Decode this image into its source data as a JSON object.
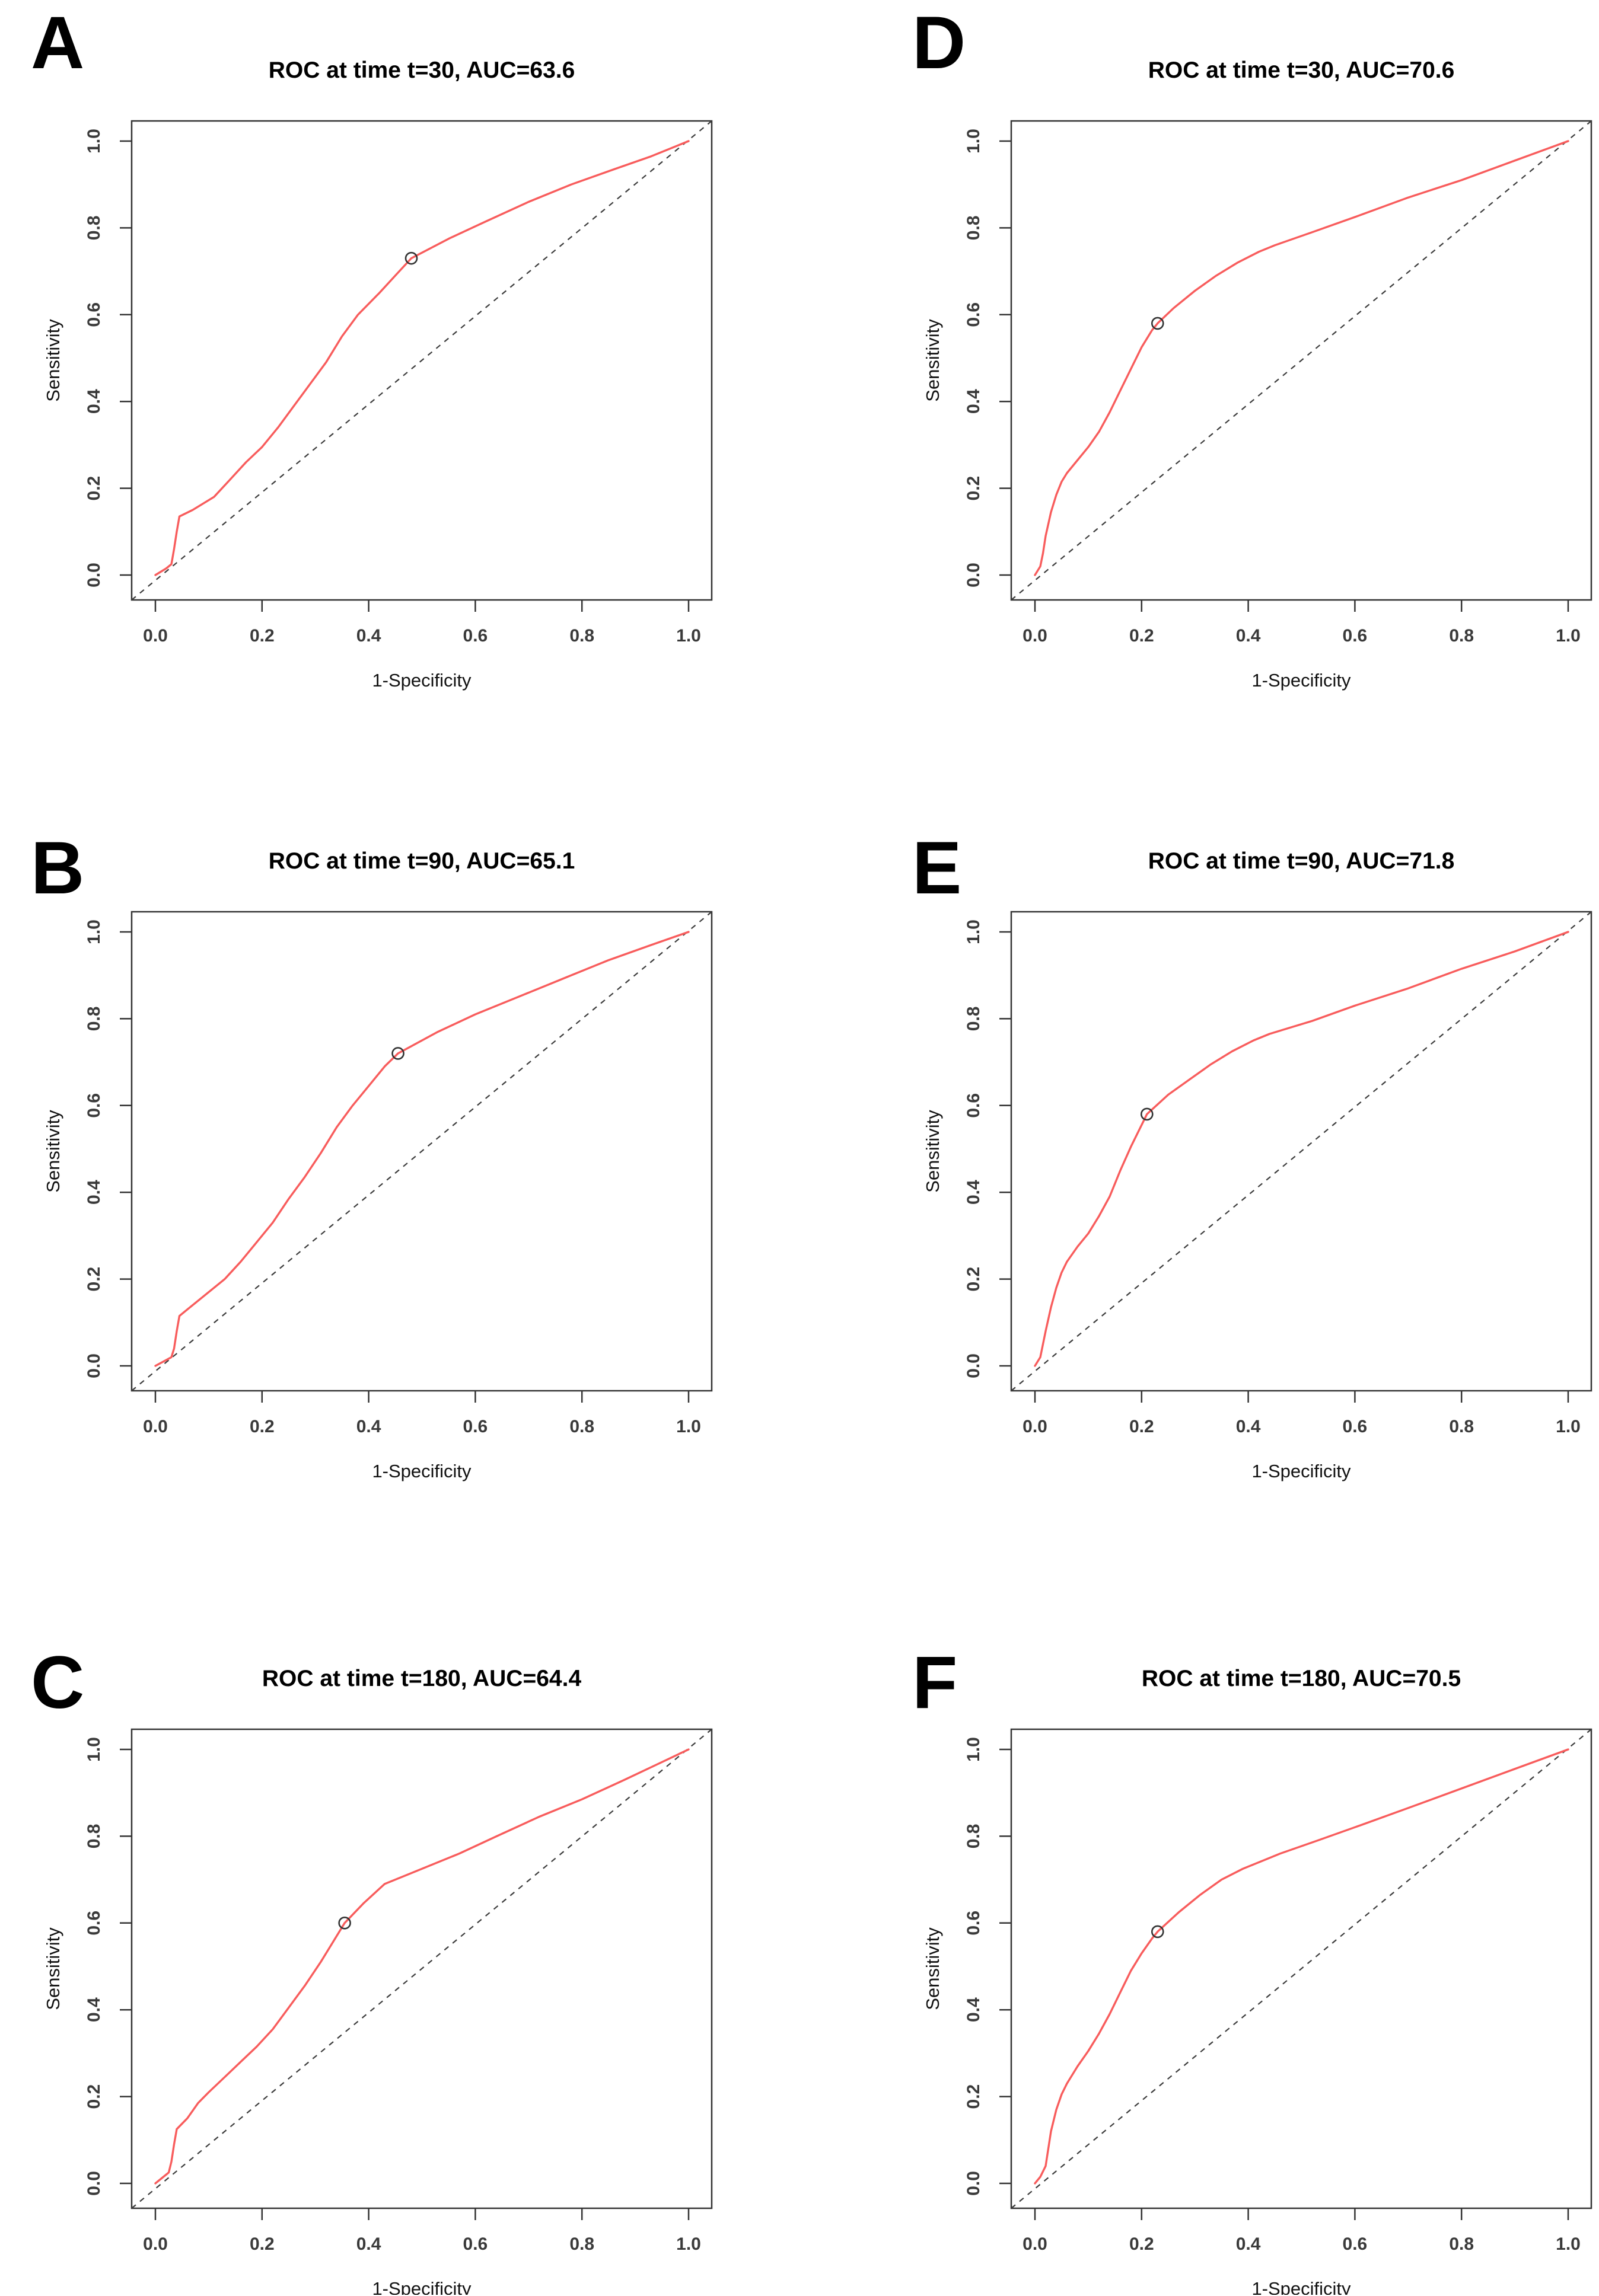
{
  "figure": {
    "background": "#ffffff",
    "curve_color": "#f85c5c",
    "diagonal_color": "#3c3c3c",
    "box_color": "#333333",
    "tick_text_color": "#3a3a3a",
    "title_color": "#000000"
  },
  "chart_data": [
    {
      "type": "line",
      "panel_label": "A",
      "title": "ROC at time t=30, AUC=63.6",
      "time": 30,
      "auc": 63.6,
      "xlabel": "1-Specificity",
      "ylabel": "Sensitivity",
      "xlim": [
        0,
        1
      ],
      "ylim": [
        0,
        1
      ],
      "x_ticks": [
        0,
        0.2,
        0.4,
        0.6,
        0.8,
        1.0
      ],
      "y_ticks": [
        0,
        0.2,
        0.4,
        0.6,
        0.8,
        1.0
      ],
      "x_tick_labels": [
        "0.0",
        "0.2",
        "0.4",
        "0.6",
        "0.8",
        "1.0"
      ],
      "y_tick_labels": [
        "0.0",
        "0.2",
        "0.4",
        "0.6",
        "0.8",
        "1.0"
      ],
      "grid": false,
      "legend": "none",
      "series": [
        {
          "name": "ROC curve",
          "style": "solid",
          "points": [
            [
              0,
              0
            ],
            [
              0.02,
              0.015
            ],
            [
              0.03,
              0.025
            ],
            [
              0.035,
              0.06
            ],
            [
              0.04,
              0.1
            ],
            [
              0.045,
              0.135
            ],
            [
              0.07,
              0.15
            ],
            [
              0.09,
              0.165
            ],
            [
              0.11,
              0.18
            ],
            [
              0.14,
              0.22
            ],
            [
              0.17,
              0.26
            ],
            [
              0.2,
              0.295
            ],
            [
              0.23,
              0.34
            ],
            [
              0.26,
              0.39
            ],
            [
              0.29,
              0.44
            ],
            [
              0.32,
              0.49
            ],
            [
              0.35,
              0.55
            ],
            [
              0.38,
              0.6
            ],
            [
              0.42,
              0.65
            ],
            [
              0.45,
              0.69
            ],
            [
              0.48,
              0.73
            ],
            [
              0.55,
              0.775
            ],
            [
              0.62,
              0.815
            ],
            [
              0.7,
              0.86
            ],
            [
              0.78,
              0.9
            ],
            [
              0.86,
              0.935
            ],
            [
              0.93,
              0.965
            ],
            [
              1.0,
              1.0
            ]
          ]
        },
        {
          "name": "chance diagonal",
          "style": "dashed",
          "points": [
            [
              0,
              0
            ],
            [
              1,
              1
            ]
          ]
        }
      ],
      "marker": {
        "x": 0.48,
        "y": 0.73,
        "shape": "open-circle"
      }
    },
    {
      "type": "line",
      "panel_label": "B",
      "title": "ROC at time t=90, AUC=65.1",
      "time": 90,
      "auc": 65.1,
      "xlabel": "1-Specificity",
      "ylabel": "Sensitivity",
      "xlim": [
        0,
        1
      ],
      "ylim": [
        0,
        1
      ],
      "x_ticks": [
        0,
        0.2,
        0.4,
        0.6,
        0.8,
        1.0
      ],
      "y_ticks": [
        0,
        0.2,
        0.4,
        0.6,
        0.8,
        1.0
      ],
      "x_tick_labels": [
        "0.0",
        "0.2",
        "0.4",
        "0.6",
        "0.8",
        "1.0"
      ],
      "y_tick_labels": [
        "0.0",
        "0.2",
        "0.4",
        "0.6",
        "0.8",
        "1.0"
      ],
      "grid": false,
      "legend": "none",
      "series": [
        {
          "name": "ROC curve",
          "style": "solid",
          "points": [
            [
              0,
              0
            ],
            [
              0.015,
              0.01
            ],
            [
              0.03,
              0.02
            ],
            [
              0.035,
              0.04
            ],
            [
              0.04,
              0.08
            ],
            [
              0.045,
              0.115
            ],
            [
              0.06,
              0.13
            ],
            [
              0.08,
              0.15
            ],
            [
              0.1,
              0.17
            ],
            [
              0.13,
              0.2
            ],
            [
              0.16,
              0.24
            ],
            [
              0.19,
              0.285
            ],
            [
              0.22,
              0.33
            ],
            [
              0.25,
              0.385
            ],
            [
              0.28,
              0.435
            ],
            [
              0.31,
              0.49
            ],
            [
              0.34,
              0.55
            ],
            [
              0.37,
              0.6
            ],
            [
              0.4,
              0.645
            ],
            [
              0.43,
              0.69
            ],
            [
              0.455,
              0.72
            ],
            [
              0.53,
              0.77
            ],
            [
              0.6,
              0.81
            ],
            [
              0.68,
              0.85
            ],
            [
              0.76,
              0.89
            ],
            [
              0.85,
              0.935
            ],
            [
              0.93,
              0.97
            ],
            [
              1.0,
              1.0
            ]
          ]
        },
        {
          "name": "chance diagonal",
          "style": "dashed",
          "points": [
            [
              0,
              0
            ],
            [
              1,
              1
            ]
          ]
        }
      ],
      "marker": {
        "x": 0.455,
        "y": 0.72,
        "shape": "open-circle"
      }
    },
    {
      "type": "line",
      "panel_label": "C",
      "title": "ROC at time t=180, AUC=64.4",
      "time": 180,
      "auc": 64.4,
      "xlabel": "1-Specificity",
      "ylabel": "Sensitivity",
      "xlim": [
        0,
        1
      ],
      "ylim": [
        0,
        1
      ],
      "x_ticks": [
        0,
        0.2,
        0.4,
        0.6,
        0.8,
        1.0
      ],
      "y_ticks": [
        0,
        0.2,
        0.4,
        0.6,
        0.8,
        1.0
      ],
      "x_tick_labels": [
        "0.0",
        "0.2",
        "0.4",
        "0.6",
        "0.8",
        "1.0"
      ],
      "y_tick_labels": [
        "0.0",
        "0.2",
        "0.4",
        "0.6",
        "0.8",
        "1.0"
      ],
      "grid": false,
      "legend": "none",
      "series": [
        {
          "name": "ROC curve",
          "style": "solid",
          "points": [
            [
              0,
              0
            ],
            [
              0.015,
              0.015
            ],
            [
              0.025,
              0.025
            ],
            [
              0.03,
              0.05
            ],
            [
              0.035,
              0.09
            ],
            [
              0.04,
              0.125
            ],
            [
              0.06,
              0.15
            ],
            [
              0.08,
              0.185
            ],
            [
              0.1,
              0.21
            ],
            [
              0.13,
              0.245
            ],
            [
              0.16,
              0.28
            ],
            [
              0.19,
              0.315
            ],
            [
              0.22,
              0.355
            ],
            [
              0.25,
              0.405
            ],
            [
              0.28,
              0.455
            ],
            [
              0.31,
              0.51
            ],
            [
              0.33,
              0.55
            ],
            [
              0.355,
              0.6
            ],
            [
              0.39,
              0.645
            ],
            [
              0.43,
              0.69
            ],
            [
              0.47,
              0.71
            ],
            [
              0.5,
              0.725
            ],
            [
              0.57,
              0.76
            ],
            [
              0.64,
              0.8
            ],
            [
              0.72,
              0.845
            ],
            [
              0.8,
              0.885
            ],
            [
              0.88,
              0.93
            ],
            [
              0.94,
              0.965
            ],
            [
              1.0,
              1.0
            ]
          ]
        },
        {
          "name": "chance diagonal",
          "style": "dashed",
          "points": [
            [
              0,
              0
            ],
            [
              1,
              1
            ]
          ]
        }
      ],
      "marker": {
        "x": 0.355,
        "y": 0.6,
        "shape": "open-circle"
      }
    },
    {
      "type": "line",
      "panel_label": "D",
      "title": "ROC at time t=30, AUC=70.6",
      "time": 30,
      "auc": 70.6,
      "xlabel": "1-Specificity",
      "ylabel": "Sensitivity",
      "xlim": [
        0,
        1
      ],
      "ylim": [
        0,
        1
      ],
      "x_ticks": [
        0,
        0.2,
        0.4,
        0.6,
        0.8,
        1.0
      ],
      "y_ticks": [
        0,
        0.2,
        0.4,
        0.6,
        0.8,
        1.0
      ],
      "x_tick_labels": [
        "0.0",
        "0.2",
        "0.4",
        "0.6",
        "0.8",
        "1.0"
      ],
      "y_tick_labels": [
        "0.0",
        "0.2",
        "0.4",
        "0.6",
        "0.8",
        "1.0"
      ],
      "grid": false,
      "legend": "none",
      "series": [
        {
          "name": "ROC curve",
          "style": "solid",
          "points": [
            [
              0,
              0
            ],
            [
              0.01,
              0.02
            ],
            [
              0.015,
              0.05
            ],
            [
              0.02,
              0.09
            ],
            [
              0.03,
              0.145
            ],
            [
              0.04,
              0.185
            ],
            [
              0.05,
              0.215
            ],
            [
              0.06,
              0.235
            ],
            [
              0.08,
              0.265
            ],
            [
              0.1,
              0.295
            ],
            [
              0.12,
              0.33
            ],
            [
              0.14,
              0.375
            ],
            [
              0.16,
              0.425
            ],
            [
              0.18,
              0.475
            ],
            [
              0.2,
              0.525
            ],
            [
              0.22,
              0.565
            ],
            [
              0.23,
              0.58
            ],
            [
              0.26,
              0.615
            ],
            [
              0.3,
              0.655
            ],
            [
              0.34,
              0.69
            ],
            [
              0.38,
              0.72
            ],
            [
              0.42,
              0.745
            ],
            [
              0.45,
              0.76
            ],
            [
              0.52,
              0.79
            ],
            [
              0.6,
              0.825
            ],
            [
              0.7,
              0.87
            ],
            [
              0.8,
              0.91
            ],
            [
              0.9,
              0.955
            ],
            [
              1.0,
              1.0
            ]
          ]
        },
        {
          "name": "chance diagonal",
          "style": "dashed",
          "points": [
            [
              0,
              0
            ],
            [
              1,
              1
            ]
          ]
        }
      ],
      "marker": {
        "x": 0.23,
        "y": 0.58,
        "shape": "open-circle"
      }
    },
    {
      "type": "line",
      "panel_label": "E",
      "title": "ROC at time t=90, AUC=71.8",
      "time": 90,
      "auc": 71.8,
      "xlabel": "1-Specificity",
      "ylabel": "Sensitivity",
      "xlim": [
        0,
        1
      ],
      "ylim": [
        0,
        1
      ],
      "x_ticks": [
        0,
        0.2,
        0.4,
        0.6,
        0.8,
        1.0
      ],
      "y_ticks": [
        0,
        0.2,
        0.4,
        0.6,
        0.8,
        1.0
      ],
      "x_tick_labels": [
        "0.0",
        "0.2",
        "0.4",
        "0.6",
        "0.8",
        "1.0"
      ],
      "y_tick_labels": [
        "0.0",
        "0.2",
        "0.4",
        "0.6",
        "0.8",
        "1.0"
      ],
      "grid": false,
      "legend": "none",
      "series": [
        {
          "name": "ROC curve",
          "style": "solid",
          "points": [
            [
              0,
              0
            ],
            [
              0.01,
              0.02
            ],
            [
              0.015,
              0.05
            ],
            [
              0.02,
              0.08
            ],
            [
              0.03,
              0.135
            ],
            [
              0.04,
              0.18
            ],
            [
              0.05,
              0.215
            ],
            [
              0.06,
              0.24
            ],
            [
              0.08,
              0.275
            ],
            [
              0.1,
              0.305
            ],
            [
              0.12,
              0.345
            ],
            [
              0.14,
              0.39
            ],
            [
              0.16,
              0.45
            ],
            [
              0.18,
              0.505
            ],
            [
              0.2,
              0.555
            ],
            [
              0.21,
              0.58
            ],
            [
              0.25,
              0.625
            ],
            [
              0.29,
              0.66
            ],
            [
              0.33,
              0.695
            ],
            [
              0.37,
              0.725
            ],
            [
              0.41,
              0.75
            ],
            [
              0.44,
              0.765
            ],
            [
              0.52,
              0.795
            ],
            [
              0.6,
              0.83
            ],
            [
              0.7,
              0.87
            ],
            [
              0.8,
              0.915
            ],
            [
              0.9,
              0.955
            ],
            [
              1.0,
              1.0
            ]
          ]
        },
        {
          "name": "chance diagonal",
          "style": "dashed",
          "points": [
            [
              0,
              0
            ],
            [
              1,
              1
            ]
          ]
        }
      ],
      "marker": {
        "x": 0.21,
        "y": 0.58,
        "shape": "open-circle"
      }
    },
    {
      "type": "line",
      "panel_label": "F",
      "title": "ROC at time t=180, AUC=70.5",
      "time": 180,
      "auc": 70.5,
      "xlabel": "1-Specificity",
      "ylabel": "Sensitivity",
      "xlim": [
        0,
        1
      ],
      "ylim": [
        0,
        1
      ],
      "x_ticks": [
        0,
        0.2,
        0.4,
        0.6,
        0.8,
        1.0
      ],
      "y_ticks": [
        0,
        0.2,
        0.4,
        0.6,
        0.8,
        1.0
      ],
      "x_tick_labels": [
        "0.0",
        "0.2",
        "0.4",
        "0.6",
        "0.8",
        "1.0"
      ],
      "y_tick_labels": [
        "0.0",
        "0.2",
        "0.4",
        "0.6",
        "0.8",
        "1.0"
      ],
      "grid": false,
      "legend": "none",
      "series": [
        {
          "name": "ROC curve",
          "style": "solid",
          "points": [
            [
              0,
              0
            ],
            [
              0.01,
              0.015
            ],
            [
              0.02,
              0.04
            ],
            [
              0.025,
              0.08
            ],
            [
              0.03,
              0.12
            ],
            [
              0.04,
              0.17
            ],
            [
              0.05,
              0.205
            ],
            [
              0.06,
              0.23
            ],
            [
              0.08,
              0.27
            ],
            [
              0.1,
              0.305
            ],
            [
              0.12,
              0.345
            ],
            [
              0.14,
              0.39
            ],
            [
              0.16,
              0.44
            ],
            [
              0.18,
              0.49
            ],
            [
              0.2,
              0.53
            ],
            [
              0.22,
              0.565
            ],
            [
              0.23,
              0.58
            ],
            [
              0.27,
              0.625
            ],
            [
              0.31,
              0.665
            ],
            [
              0.35,
              0.7
            ],
            [
              0.39,
              0.725
            ],
            [
              0.43,
              0.745
            ],
            [
              0.46,
              0.76
            ],
            [
              0.53,
              0.79
            ],
            [
              0.61,
              0.825
            ],
            [
              0.7,
              0.865
            ],
            [
              0.8,
              0.91
            ],
            [
              0.9,
              0.955
            ],
            [
              1.0,
              1.0
            ]
          ]
        },
        {
          "name": "chance diagonal",
          "style": "dashed",
          "points": [
            [
              0,
              0
            ],
            [
              1,
              1
            ]
          ]
        }
      ],
      "marker": {
        "x": 0.23,
        "y": 0.58,
        "shape": "open-circle"
      }
    }
  ]
}
